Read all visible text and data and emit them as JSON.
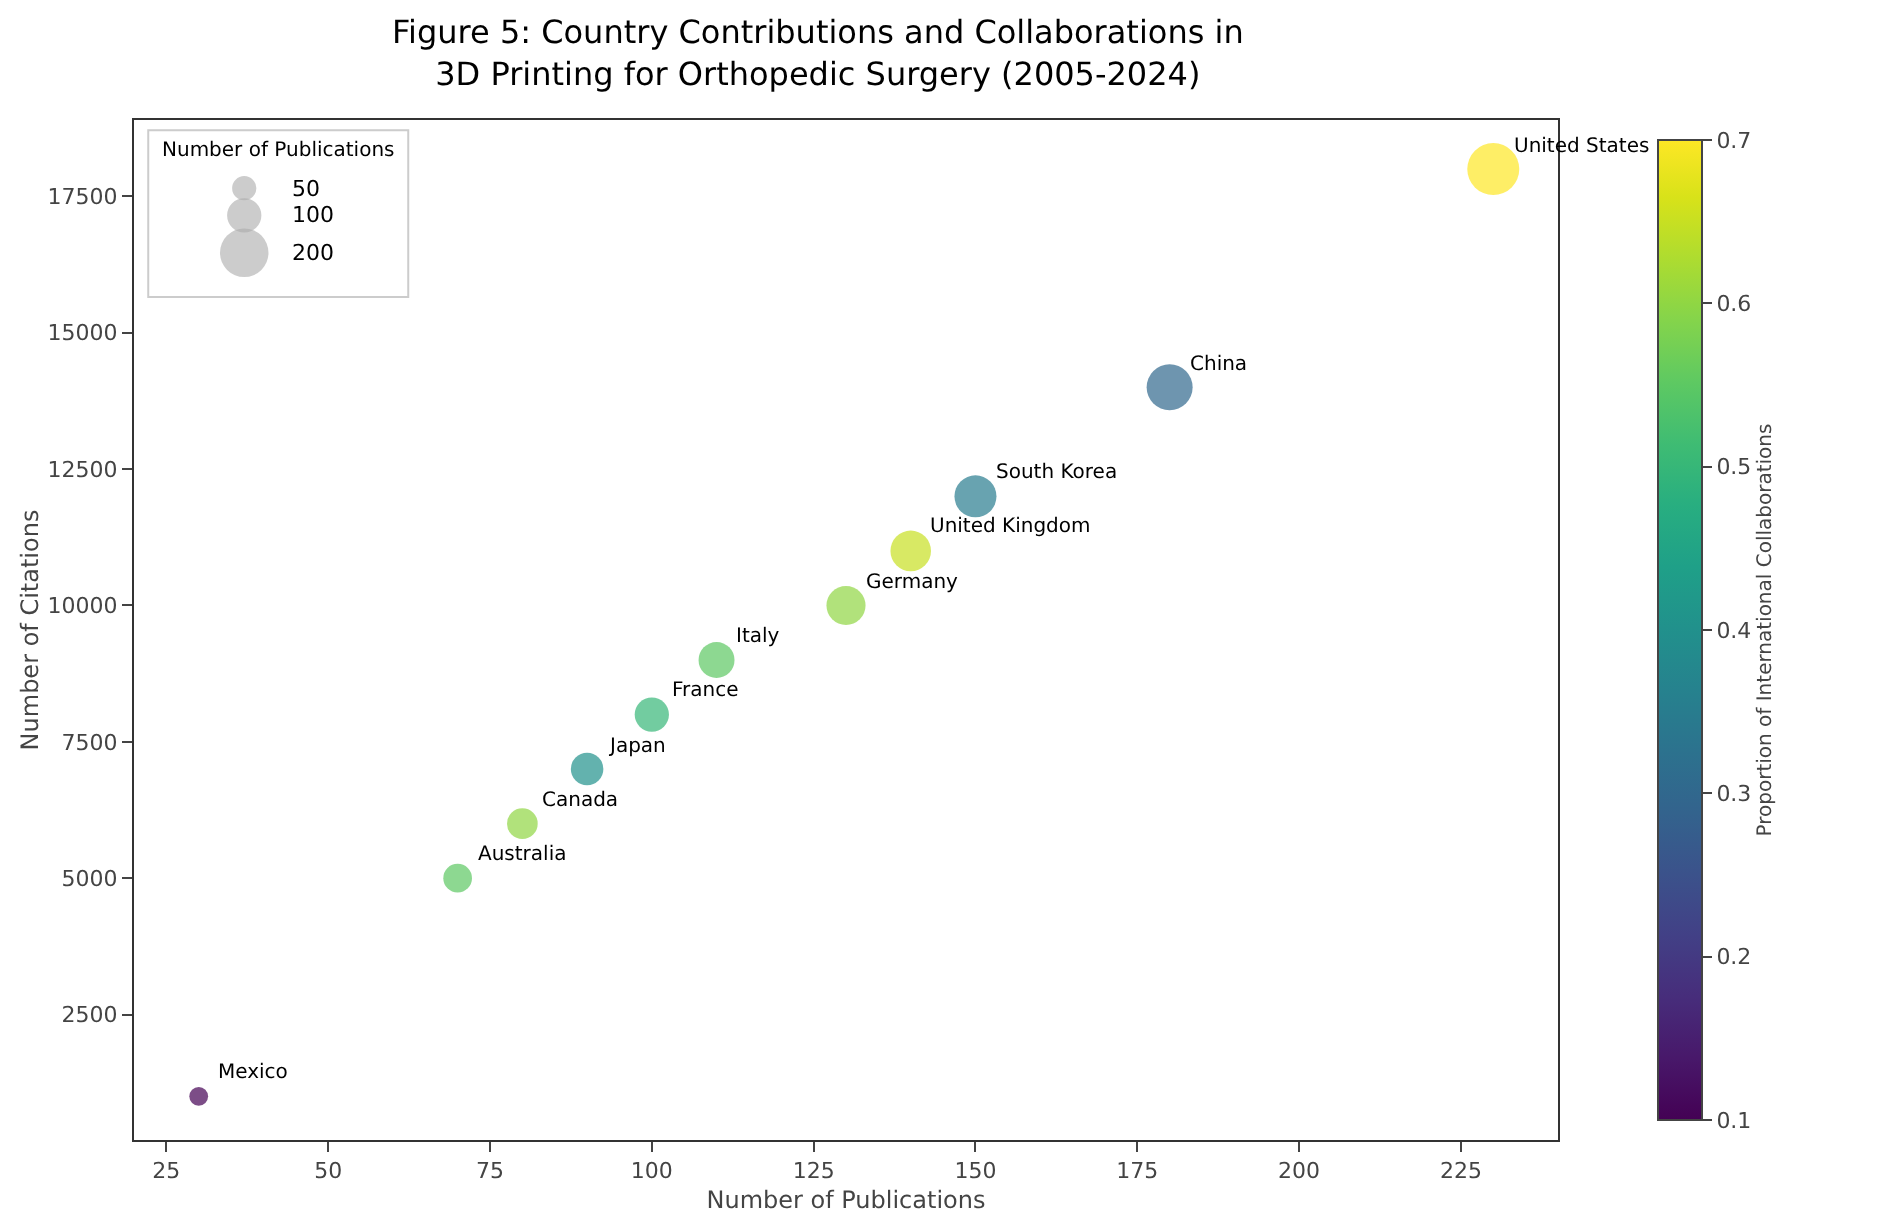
{
  "chart_data": {
    "type": "bubble",
    "title": "Figure 5: Country Contributions and Collaborations in\n3D Printing for Orthopedic Surgery (2005-2024)",
    "xlabel": "Number of Publications",
    "ylabel": "Number of Citations",
    "clabel": "Proportion of International Collaborations",
    "legend_title": "Number of Publications",
    "x": [
      230,
      180,
      150,
      140,
      130,
      110,
      100,
      90,
      80,
      70,
      30
    ],
    "values": [
      18000,
      14000,
      12000,
      11000,
      10000,
      9000,
      8000,
      7000,
      6000,
      5000,
      1000
    ],
    "sizes": [
      230,
      180,
      150,
      140,
      130,
      110,
      100,
      90,
      80,
      70,
      30
    ],
    "cvalues": [
      0.7,
      0.3,
      0.35,
      0.65,
      0.6,
      0.55,
      0.5,
      0.4,
      0.6,
      0.55,
      0.1
    ],
    "size_legend": [
      50,
      100,
      200
    ],
    "clim": [
      0.1,
      0.7
    ],
    "cticks": [
      0.1,
      0.2,
      0.3,
      0.4,
      0.5,
      0.6,
      0.7
    ],
    "xlim": [
      20,
      240
    ],
    "xticks": [
      25,
      50,
      75,
      100,
      125,
      150,
      175,
      200,
      225
    ],
    "ylim": [
      200,
      18900
    ],
    "yticks": [
      2500,
      5000,
      7500,
      10000,
      12500,
      15000,
      17500
    ],
    "grid": false,
    "marker": "circle",
    "annotations": [
      {
        "text": "United States",
        "x": 230,
        "y": 18000
      },
      {
        "text": "China",
        "x": 180,
        "y": 14000
      },
      {
        "text": "South Korea",
        "x": 150,
        "y": 12000
      },
      {
        "text": "United Kingdom",
        "x": 140,
        "y": 11000
      },
      {
        "text": "Germany",
        "x": 130,
        "y": 10000
      },
      {
        "text": "Italy",
        "x": 110,
        "y": 9000
      },
      {
        "text": "France",
        "x": 100,
        "y": 8000
      },
      {
        "text": "Japan",
        "x": 90,
        "y": 7000
      },
      {
        "text": "Canada",
        "x": 80,
        "y": 6000
      },
      {
        "text": "Australia",
        "x": 70,
        "y": 5000
      },
      {
        "text": "Mexico",
        "x": 30,
        "y": 1000
      }
    ]
  }
}
